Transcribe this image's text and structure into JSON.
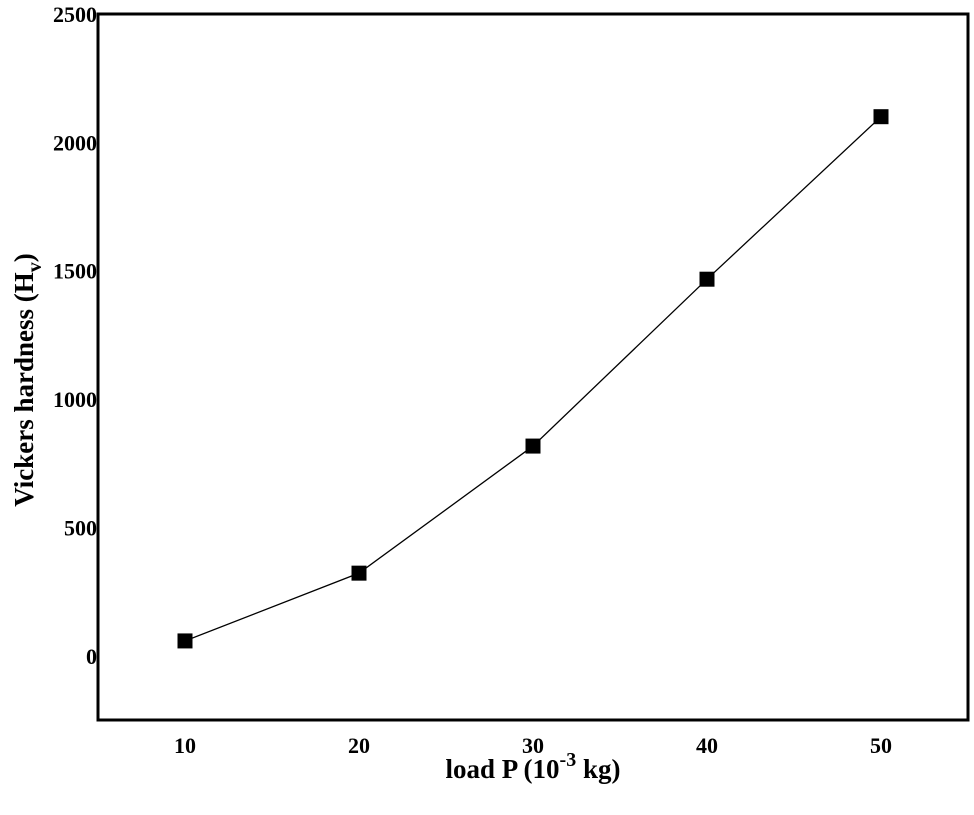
{
  "chart_data": {
    "type": "line",
    "title": "",
    "xlabel": "load P (10^-3 kg)",
    "xlabel_parts": {
      "main": "load P (10",
      "sup": "-3",
      "tail": " kg)"
    },
    "ylabel": "Vickers hardness (Hv)",
    "ylabel_parts": {
      "main": "Vickers hardness (H",
      "sub": "v",
      "tail": ")"
    },
    "x": [
      10,
      20,
      30,
      40,
      50
    ],
    "series": [
      {
        "name": "Vickers hardness",
        "marker": "square",
        "color": "#000000",
        "values": [
          58,
          322,
          817,
          1467,
          2100
        ]
      }
    ],
    "xlim": [
      5,
      55
    ],
    "ylim": [
      -250,
      2500
    ],
    "xticks": [
      10,
      20,
      30,
      40,
      50
    ],
    "yticks": [
      0,
      500,
      1000,
      1500,
      2000,
      2500
    ],
    "grid": false,
    "legend": null
  },
  "colors": {
    "line": "#000000",
    "marker": "#000000",
    "frame": "#000000",
    "background": "#ffffff"
  }
}
